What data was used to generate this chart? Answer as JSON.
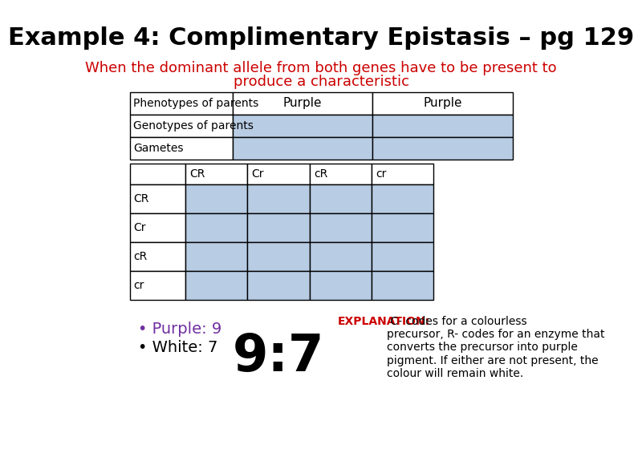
{
  "title": "Example 4: Complimentary Epistasis – pg 129",
  "subtitle_line1": "When the dominant allele from both genes have to be present to",
  "subtitle_line2": "produce a characteristic",
  "subtitle_color": "#cc0000",
  "title_color": "#000000",
  "table1_labels": [
    "Phenotypes of parents",
    "Genotypes of parents",
    "Gametes"
  ],
  "table1_col2": [
    "Purple",
    "",
    ""
  ],
  "table1_col3": [
    "Purple",
    "",
    ""
  ],
  "punnett_cols": [
    "CR",
    "Cr",
    "cR",
    "cr"
  ],
  "punnett_rows": [
    "CR",
    "Cr",
    "cR",
    "cr"
  ],
  "light_blue": "#b8cce4",
  "bullet1": "• Purple: 9",
  "bullet2": "• White: 7",
  "bullet_purple_color": "#7030a0",
  "bullet_black_color": "#000000",
  "ratio": "9:7",
  "explanation_bold": "EXPLANATION:",
  "explanation_text": " C- codes for a colourless\nprecursor, R- codes for an enzyme that\nconverts the precursor into purple\npigment. If either are not present, the\ncolour will remain white.",
  "explanation_bold_color": "#cc0000",
  "explanation_text_color": "#000000",
  "bg_color": "#ffffff"
}
